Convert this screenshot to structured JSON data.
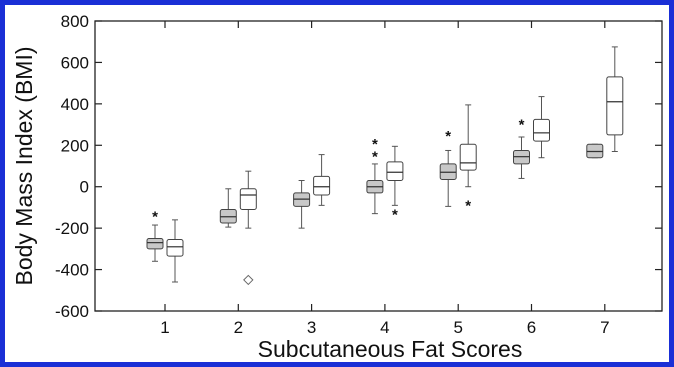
{
  "chart_data": {
    "type": "box",
    "title": "",
    "xlabel": "Subcutaneous Fat Scores",
    "ylabel": "Body Mass Index (BMI)",
    "ylim": [
      -600,
      800
    ],
    "yticks": [
      -600,
      -400,
      -200,
      0,
      200,
      400,
      600,
      800
    ],
    "categories": [
      "1",
      "2",
      "3",
      "4",
      "5",
      "6",
      "7"
    ],
    "grid": false,
    "legend": "none",
    "series": [
      {
        "fill": "#c8c8c8",
        "boxes": [
          {
            "category": "1",
            "min": -360,
            "q1": -300,
            "median": -270,
            "q3": -250,
            "max": -185,
            "outliers": [
              {
                "value": -140,
                "marker": "*"
              }
            ]
          },
          {
            "category": "2",
            "min": -195,
            "q1": -175,
            "median": -145,
            "q3": -110,
            "max": -10,
            "outliers": []
          },
          {
            "category": "3",
            "min": -200,
            "q1": -95,
            "median": -60,
            "q3": -30,
            "max": 30,
            "outliers": []
          },
          {
            "category": "4",
            "min": -130,
            "q1": -30,
            "median": 0,
            "q3": 30,
            "max": 110,
            "outliers": [
              {
                "value": 150,
                "marker": "*"
              },
              {
                "value": 210,
                "marker": "*"
              }
            ]
          },
          {
            "category": "5",
            "min": -95,
            "q1": 35,
            "median": 70,
            "q3": 110,
            "max": 175,
            "outliers": [
              {
                "value": 250,
                "marker": "*"
              }
            ]
          },
          {
            "category": "6",
            "min": 40,
            "q1": 110,
            "median": 145,
            "q3": 175,
            "max": 240,
            "outliers": [
              {
                "value": 305,
                "marker": "*"
              }
            ]
          },
          {
            "category": "7",
            "min": 140,
            "q1": 140,
            "median": 170,
            "q3": 205,
            "max": 205,
            "outliers": []
          }
        ]
      },
      {
        "fill": "#ffffff",
        "boxes": [
          {
            "category": "1",
            "min": -460,
            "q1": -335,
            "median": -290,
            "q3": -255,
            "max": -160,
            "outliers": []
          },
          {
            "category": "2",
            "min": -200,
            "q1": -110,
            "median": -40,
            "q3": -10,
            "max": 75,
            "outliers": [
              {
                "value": -450,
                "marker": "diamond"
              }
            ]
          },
          {
            "category": "3",
            "min": -90,
            "q1": -40,
            "median": 0,
            "q3": 50,
            "max": 155,
            "outliers": []
          },
          {
            "category": "4",
            "min": -90,
            "q1": 30,
            "median": 70,
            "q3": 120,
            "max": 195,
            "outliers": [
              {
                "value": -130,
                "marker": "*"
              }
            ]
          },
          {
            "category": "5",
            "min": 0,
            "q1": 80,
            "median": 115,
            "q3": 205,
            "max": 395,
            "outliers": [
              {
                "value": -85,
                "marker": "*"
              }
            ]
          },
          {
            "category": "6",
            "min": 140,
            "q1": 220,
            "median": 260,
            "q3": 325,
            "max": 435,
            "outliers": []
          },
          {
            "category": "7",
            "min": 170,
            "q1": 250,
            "median": 410,
            "q3": 530,
            "max": 675,
            "outliers": []
          }
        ]
      }
    ]
  }
}
